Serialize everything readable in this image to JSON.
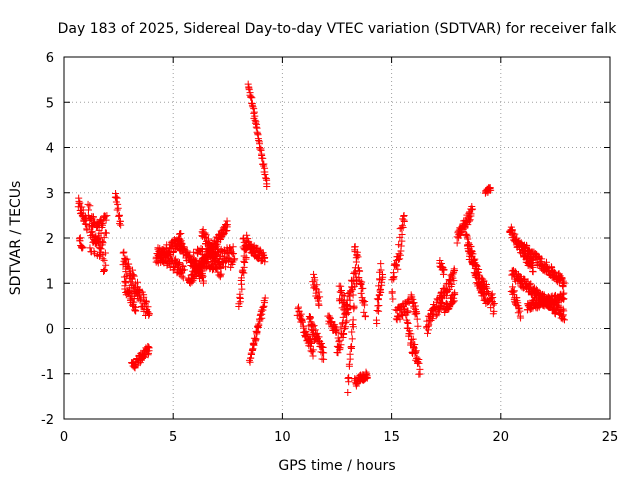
{
  "chart_data": {
    "type": "scatter",
    "title": "Day 183 of 2025, Sidereal Day-to-day VTEC variation (SDTVAR) for receiver falk",
    "xlabel": "GPS time / hours",
    "ylabel": "SDTVAR / TECUs",
    "xlim": [
      0,
      25
    ],
    "ylim": [
      -2,
      6
    ],
    "xticks": [
      0,
      5,
      10,
      15,
      20,
      25
    ],
    "yticks": [
      -2,
      -1,
      0,
      1,
      2,
      3,
      4,
      5,
      6
    ],
    "grid": true,
    "marker": "+",
    "color": "#ff0000",
    "series": [
      {
        "name": "SDTVAR",
        "segments": [
          {
            "x0": 0.65,
            "x1": 1.05,
            "y0": 2.75,
            "y1": 2.3,
            "jitter": 0.15
          },
          {
            "x0": 0.7,
            "x1": 0.85,
            "y0": 2.0,
            "y1": 1.8,
            "jitter": 0.08
          },
          {
            "x0": 1.1,
            "x1": 1.9,
            "y0": 2.5,
            "y1": 1.5,
            "jitter": 0.35
          },
          {
            "x0": 1.2,
            "x1": 1.95,
            "y0": 1.8,
            "y1": 2.3,
            "jitter": 0.3
          },
          {
            "x0": 2.35,
            "x1": 2.6,
            "y0": 3.05,
            "y1": 2.25,
            "jitter": 0.12
          },
          {
            "x0": 2.7,
            "x1": 3.9,
            "y0": 1.55,
            "y1": 0.3,
            "jitter": 0.2
          },
          {
            "x0": 2.75,
            "x1": 3.3,
            "y0": 1.0,
            "y1": 0.5,
            "jitter": 0.15
          },
          {
            "x0": 3.1,
            "x1": 3.9,
            "y0": -0.85,
            "y1": -0.45,
            "jitter": 0.1
          },
          {
            "x0": 4.2,
            "x1": 5.4,
            "y0": 1.5,
            "y1": 2.0,
            "jitter": 0.15
          },
          {
            "x0": 4.3,
            "x1": 5.5,
            "y0": 1.7,
            "y1": 1.25,
            "jitter": 0.15
          },
          {
            "x0": 5.2,
            "x1": 6.4,
            "y0": 1.9,
            "y1": 1.1,
            "jitter": 0.12
          },
          {
            "x0": 5.7,
            "x1": 7.5,
            "y0": 1.0,
            "y1": 2.3,
            "jitter": 0.1
          },
          {
            "x0": 5.9,
            "x1": 7.8,
            "y0": 1.5,
            "y1": 1.6,
            "jitter": 0.25
          },
          {
            "x0": 6.3,
            "x1": 7.2,
            "y0": 2.2,
            "y1": 1.2,
            "jitter": 0.15
          },
          {
            "x0": 8.0,
            "x1": 8.4,
            "y0": 0.5,
            "y1": 2.0,
            "jitter": 0.2
          },
          {
            "x0": 8.2,
            "x1": 9.2,
            "y0": 1.9,
            "y1": 1.55,
            "jitter": 0.12
          },
          {
            "x0": 8.45,
            "x1": 9.3,
            "y0": 5.4,
            "y1": 3.15,
            "jitter": 0.06
          },
          {
            "x0": 8.5,
            "x1": 9.2,
            "y0": -0.7,
            "y1": 0.6,
            "jitter": 0.08
          },
          {
            "x0": 10.7,
            "x1": 11.4,
            "y0": 0.4,
            "y1": -0.5,
            "jitter": 0.15
          },
          {
            "x0": 11.2,
            "x1": 11.9,
            "y0": 0.2,
            "y1": -0.6,
            "jitter": 0.15
          },
          {
            "x0": 11.4,
            "x1": 11.7,
            "y0": 1.1,
            "y1": 0.6,
            "jitter": 0.15
          },
          {
            "x0": 12.1,
            "x1": 12.5,
            "y0": 0.2,
            "y1": -0.1,
            "jitter": 0.1
          },
          {
            "x0": 12.5,
            "x1": 13.4,
            "y0": -0.5,
            "y1": 1.3,
            "jitter": 0.25
          },
          {
            "x0": 12.6,
            "x1": 13.0,
            "y0": 0.8,
            "y1": 0.3,
            "jitter": 0.2
          },
          {
            "x0": 13.0,
            "x1": 13.3,
            "y0": -1.35,
            "y1": 0.5,
            "jitter": 0.15
          },
          {
            "x0": 13.3,
            "x1": 13.9,
            "y0": -1.2,
            "y1": -1.0,
            "jitter": 0.1
          },
          {
            "x0": 13.3,
            "x1": 13.8,
            "y0": 1.9,
            "y1": 0.3,
            "jitter": 0.2
          },
          {
            "x0": 14.3,
            "x1": 14.5,
            "y0": 0.1,
            "y1": 1.4,
            "jitter": 0.15
          },
          {
            "x0": 14.4,
            "x1": 14.6,
            "y0": 0.5,
            "y1": 1.2,
            "jitter": 0.15
          },
          {
            "x0": 15.0,
            "x1": 15.6,
            "y0": 0.8,
            "y1": 2.5,
            "jitter": 0.3
          },
          {
            "x0": 15.2,
            "x1": 15.8,
            "y0": 0.3,
            "y1": 0.5,
            "jitter": 0.15
          },
          {
            "x0": 15.7,
            "x1": 16.3,
            "y0": 0.0,
            "y1": -0.9,
            "jitter": 0.2
          },
          {
            "x0": 15.9,
            "x1": 16.2,
            "y0": 0.8,
            "y1": 0.2,
            "jitter": 0.15
          },
          {
            "x0": 16.6,
            "x1": 17.3,
            "y0": 0.0,
            "y1": 0.7,
            "jitter": 0.2
          },
          {
            "x0": 17.2,
            "x1": 17.9,
            "y0": 0.6,
            "y1": 1.2,
            "jitter": 0.15
          },
          {
            "x0": 17.4,
            "x1": 17.9,
            "y0": 0.4,
            "y1": 0.7,
            "jitter": 0.1
          },
          {
            "x0": 17.2,
            "x1": 17.4,
            "y0": 1.5,
            "y1": 1.2,
            "jitter": 0.1
          },
          {
            "x0": 18.0,
            "x1": 18.7,
            "y0": 2.0,
            "y1": 2.6,
            "jitter": 0.12
          },
          {
            "x0": 18.4,
            "x1": 18.9,
            "y0": 2.0,
            "y1": 1.2,
            "jitter": 0.15
          },
          {
            "x0": 18.5,
            "x1": 19.3,
            "y0": 1.8,
            "y1": 0.7,
            "jitter": 0.2
          },
          {
            "x0": 18.9,
            "x1": 19.7,
            "y0": 1.1,
            "y1": 0.5,
            "jitter": 0.2
          },
          {
            "x0": 19.3,
            "x1": 19.55,
            "y0": 3.0,
            "y1": 3.1,
            "jitter": 0.05
          },
          {
            "x0": 20.4,
            "x1": 21.5,
            "y0": 2.2,
            "y1": 1.3,
            "jitter": 0.12
          },
          {
            "x0": 20.5,
            "x1": 22.9,
            "y0": 1.2,
            "y1": 0.3,
            "jitter": 0.12
          },
          {
            "x0": 20.5,
            "x1": 20.9,
            "y0": 0.9,
            "y1": 0.3,
            "jitter": 0.12
          },
          {
            "x0": 21.0,
            "x1": 22.9,
            "y0": 1.8,
            "y1": 1.0,
            "jitter": 0.12
          },
          {
            "x0": 21.2,
            "x1": 22.9,
            "y0": 0.5,
            "y1": 0.7,
            "jitter": 0.1
          }
        ]
      }
    ]
  }
}
